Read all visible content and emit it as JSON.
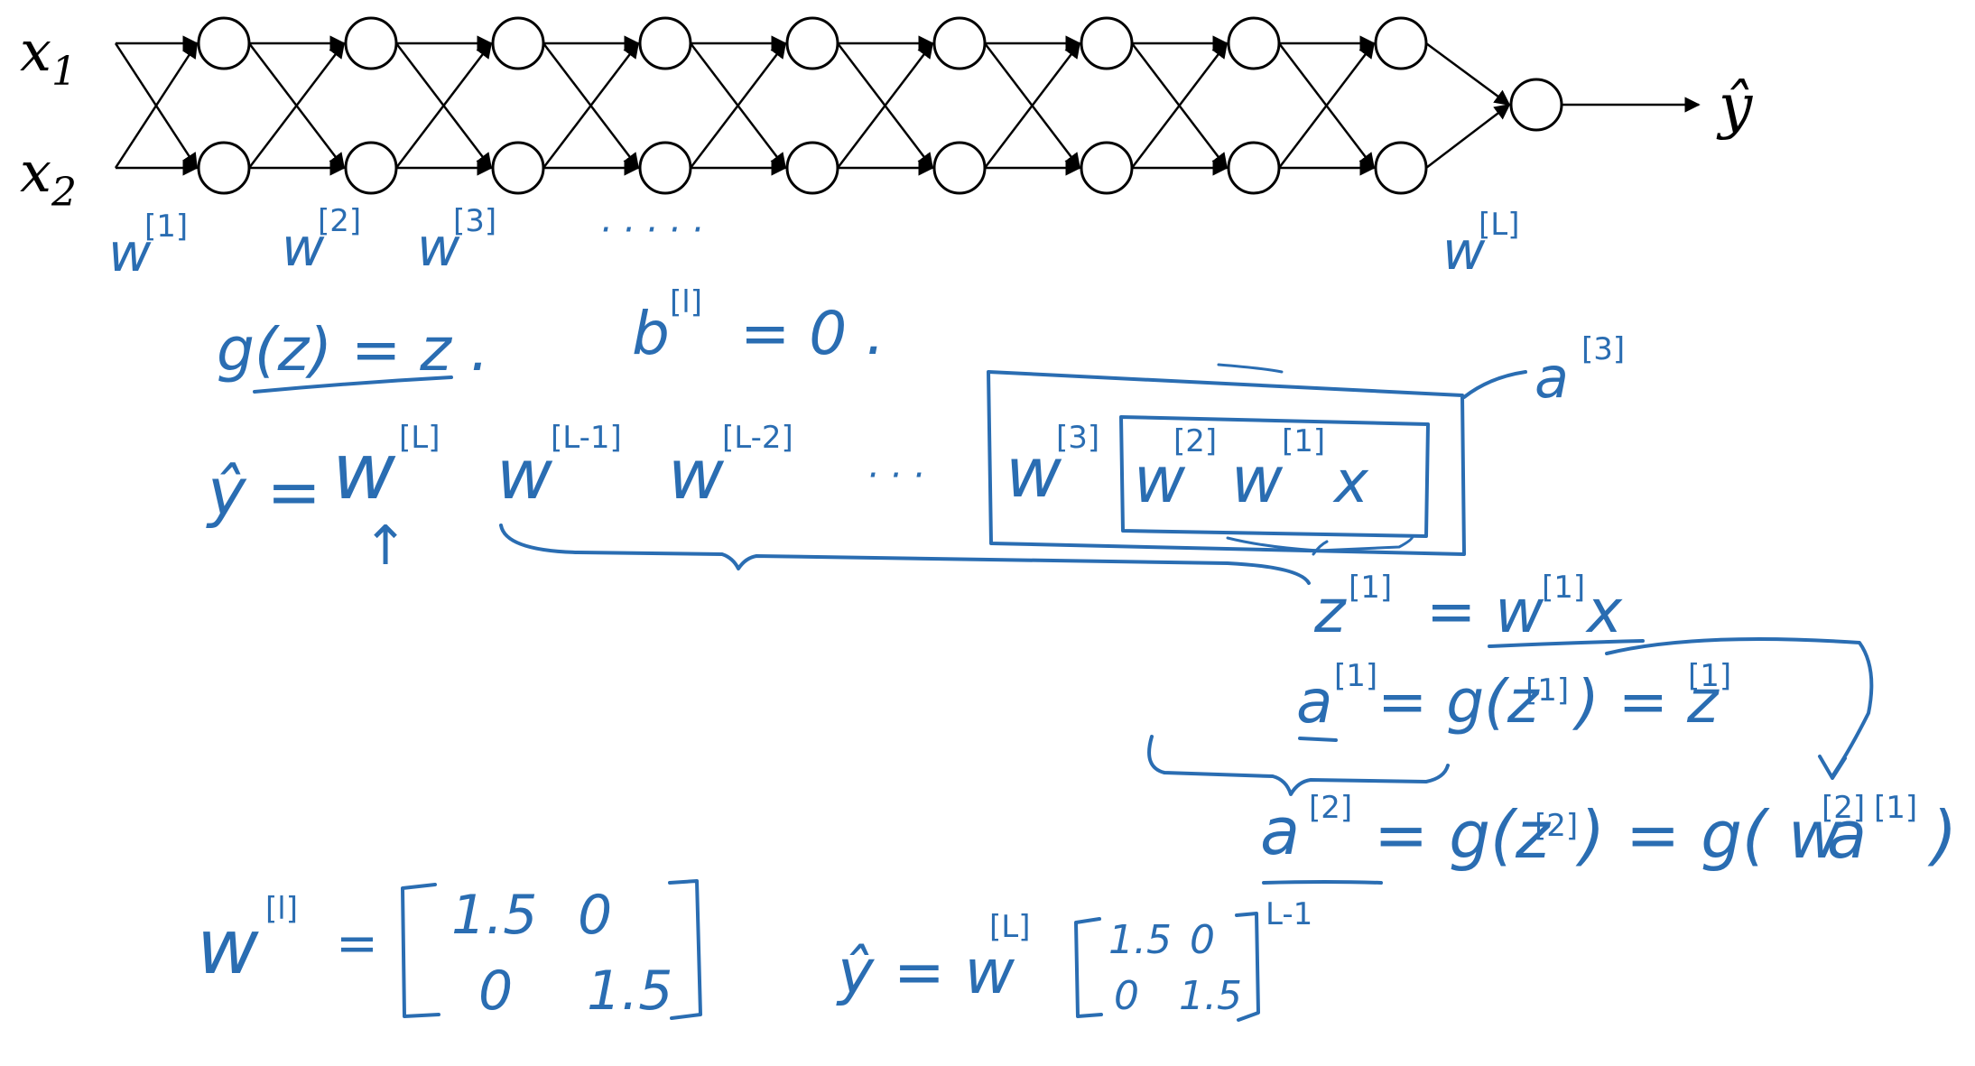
{
  "network": {
    "inputs": [
      {
        "var": "x",
        "sub": "1"
      },
      {
        "var": "x",
        "sub": "2"
      }
    ],
    "output": "ŷ",
    "hidden_layers": 9,
    "units_per_layer": 2,
    "weight_labels": [
      "w",
      "w",
      "w",
      "w"
    ],
    "weight_superscripts": [
      "[1]",
      "[2]",
      "[3]",
      "[L]"
    ],
    "ellipsis": "· · · · ·"
  },
  "notes": {
    "activation": "g(z) = z .",
    "bias": "b",
    "bias_sup": "[l]",
    "bias_rhs": "= 0 .",
    "yhat_lhs": "ŷ =",
    "product_terms": [
      {
        "base": "w",
        "sup": "[L]"
      },
      {
        "base": "w",
        "sup": "[L-1]"
      },
      {
        "base": "w",
        "sup": "[L-2]"
      },
      {
        "base": "· · ·",
        "sup": ""
      },
      {
        "base": "w",
        "sup": "[3]"
      },
      {
        "base": "w",
        "sup": "[2]"
      },
      {
        "base": "w",
        "sup": "[1]"
      },
      {
        "base": "x",
        "sup": ""
      }
    ],
    "box_label": "a",
    "box_label_sup": "[3]",
    "up_arrow": "↑",
    "eq_z1_lhs": "z",
    "eq_z1_sup": "[1]",
    "eq_z1_rhs": "= w",
    "eq_z1_rhs_sup": "[1]",
    "eq_z1_x": "x",
    "eq_a1_lhs": "a",
    "eq_a1_sup": "[1]",
    "eq_a1_rhs": "= g(z",
    "eq_a1_rhs_sup": "[1]",
    "eq_a1_tail": ") = z",
    "eq_a1_tail_sup": "[1]",
    "eq_a2_lhs": "a",
    "eq_a2_sup": "[2]",
    "eq_a2_rhs": "= g(z",
    "eq_a2_rhs_sup": "[2]",
    "eq_a2_mid": ") = g( w",
    "eq_a2_mid_sup": "[2]",
    "eq_a2_a": "a",
    "eq_a2_a_sup": "[1]",
    "eq_a2_close": ")",
    "wl_lhs": "w",
    "wl_sup": "[l]",
    "wl_eq": "=",
    "wl_matrix": [
      [
        "1.5",
        "0"
      ],
      [
        "0",
        "1.5"
      ]
    ],
    "yhat2_lhs": "ŷ = w",
    "yhat2_sup": "[L]",
    "yhat2_matrix": [
      [
        "1.5",
        "0"
      ],
      [
        "0",
        "1.5"
      ]
    ],
    "yhat2_exp": "L-1"
  },
  "colors": {
    "ink": "#2a6db2",
    "diagram": "#000000",
    "background": "#ffffff"
  }
}
